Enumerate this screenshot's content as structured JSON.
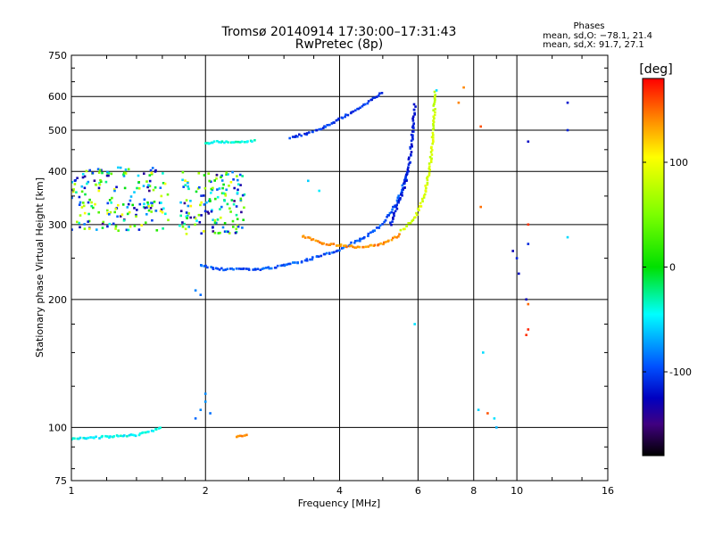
{
  "chart_data": {
    "type": "scatter",
    "title": "Tromsø 20140914 17:30:00–17:31:43",
    "subtitle": "RwPretec (8p)",
    "xlabel": "Frequency [MHz]",
    "ylabel": "Stationary phase Virtual Height [km]",
    "x_scale": "log",
    "y_scale": "log",
    "xlim": [
      1,
      16
    ],
    "ylim": [
      75,
      750
    ],
    "grid": true,
    "x_ticks": [
      {
        "v": 1,
        "label": "1"
      },
      {
        "v": 2,
        "label": "2"
      },
      {
        "v": 4,
        "label": "4"
      },
      {
        "v": 6,
        "label": "6"
      },
      {
        "v": 8,
        "label": "8"
      },
      {
        "v": 10,
        "label": "10"
      },
      {
        "v": 16,
        "label": "16"
      }
    ],
    "y_ticks": [
      {
        "v": 75,
        "label": "75"
      },
      {
        "v": 100,
        "label": "100"
      },
      {
        "v": 200,
        "label": "200"
      },
      {
        "v": 300,
        "label": "300"
      },
      {
        "v": 400,
        "label": "400"
      },
      {
        "v": 500,
        "label": "500"
      },
      {
        "v": 600,
        "label": "600"
      },
      {
        "v": 750,
        "label": "750"
      }
    ],
    "phases_box": {
      "title": "Phases",
      "line_o": "mean, sd,O: −78.1, 21.4",
      "line_x": "mean, sd,X:  91.7, 27.1"
    },
    "colorbar": {
      "label": "[deg]",
      "range": [
        -180,
        180
      ],
      "ticks": [
        {
          "v": 100,
          "label": "100"
        },
        {
          "v": 0,
          "label": "0"
        },
        {
          "v": -100,
          "label": "-100"
        }
      ],
      "stops": [
        {
          "v": 180,
          "color": "#ff0000"
        },
        {
          "v": 140,
          "color": "#ff8c00"
        },
        {
          "v": 105,
          "color": "#ffff00"
        },
        {
          "v": 50,
          "color": "#7cff00"
        },
        {
          "v": 0,
          "color": "#00e000"
        },
        {
          "v": -45,
          "color": "#00ffff"
        },
        {
          "v": -95,
          "color": "#0050ff"
        },
        {
          "v": -125,
          "color": "#0000c0"
        },
        {
          "v": -150,
          "color": "#400080"
        },
        {
          "v": -180,
          "color": "#000000"
        }
      ]
    },
    "series": [
      {
        "kind": "curve",
        "f": [
          3.1,
          3.5,
          4.0,
          4.5,
          5.0
        ],
        "h": [
          480,
          495,
          530,
          570,
          615
        ],
        "phase": -105,
        "jitter": 0.01
      },
      {
        "kind": "curve",
        "f": [
          1.95,
          2.2,
          2.6,
          3.0,
          3.5,
          4.0,
          4.5,
          5.0,
          5.4,
          5.7
        ],
        "h": [
          240,
          235,
          235,
          240,
          250,
          262,
          278,
          300,
          340,
          400
        ],
        "phase": -95,
        "jitter": 0.012
      },
      {
        "kind": "curve",
        "f": [
          5.2,
          5.5,
          5.7,
          5.8,
          5.85,
          5.9
        ],
        "h": [
          300,
          350,
          400,
          460,
          520,
          580
        ],
        "phase": -115,
        "jitter": 0.012
      },
      {
        "kind": "curve",
        "f": [
          3.3,
          3.7,
          4.0,
          4.5,
          5.0,
          5.5
        ],
        "h": [
          282,
          270,
          268,
          265,
          270,
          285
        ],
        "phase": 140,
        "jitter": 0.01
      },
      {
        "kind": "curve",
        "f": [
          5.5,
          5.9,
          6.2,
          6.4,
          6.5,
          6.55
        ],
        "h": [
          290,
          310,
          350,
          420,
          500,
          620
        ],
        "phase": 85,
        "jitter": 0.01
      },
      {
        "kind": "curve",
        "f": [
          2.0,
          2.1,
          2.3,
          2.6
        ],
        "h": [
          465,
          470,
          468,
          472
        ],
        "phase": -40,
        "jitter": 0.008
      },
      {
        "kind": "curve",
        "f": [
          1.0,
          1.2,
          1.4,
          1.6
        ],
        "h": [
          94,
          95,
          96,
          100
        ],
        "phase": -45,
        "jitter": 0.01
      },
      {
        "kind": "curve",
        "f": [
          2.35,
          2.5
        ],
        "h": [
          95,
          96
        ],
        "phase": 140,
        "jitter": 0.006
      },
      {
        "kind": "cloud",
        "f": [
          1.0,
          1.65
        ],
        "h": [
          290,
          410
        ],
        "phase_range": [
          -150,
          110
        ],
        "n": 190
      },
      {
        "kind": "cloud",
        "f": [
          1.75,
          2.45
        ],
        "h": [
          285,
          400
        ],
        "phase_range": [
          -150,
          110
        ],
        "n": 150
      },
      {
        "kind": "points",
        "f": [
          1.9,
          1.95,
          2.0,
          2.0,
          2.05,
          1.95,
          1.9
        ],
        "h": [
          105,
          110,
          115,
          120,
          108,
          205,
          210
        ],
        "phase": -85
      },
      {
        "kind": "points",
        "f": [
          7.6,
          7.4,
          8.3,
          8.3,
          8.6
        ],
        "h": [
          630,
          580,
          510,
          330,
          108
        ],
        "phase": 150
      },
      {
        "kind": "points",
        "f": [
          9.8,
          10.0,
          10.1,
          10.6,
          10.6,
          10.5,
          13.0,
          13.0
        ],
        "h": [
          260,
          250,
          230,
          470,
          270,
          200,
          500,
          580
        ],
        "phase": -120
      },
      {
        "kind": "points",
        "f": [
          10.6,
          10.6,
          10.6,
          10.5
        ],
        "h": [
          300,
          195,
          170,
          165
        ],
        "phase": 160
      },
      {
        "kind": "points",
        "f": [
          8.4,
          8.9,
          9.0,
          13.0,
          6.6,
          5.9,
          3.4,
          3.6,
          8.2
        ],
        "h": [
          150,
          105,
          100,
          280,
          620,
          175,
          380,
          360,
          110
        ],
        "phase": -60
      }
    ]
  }
}
